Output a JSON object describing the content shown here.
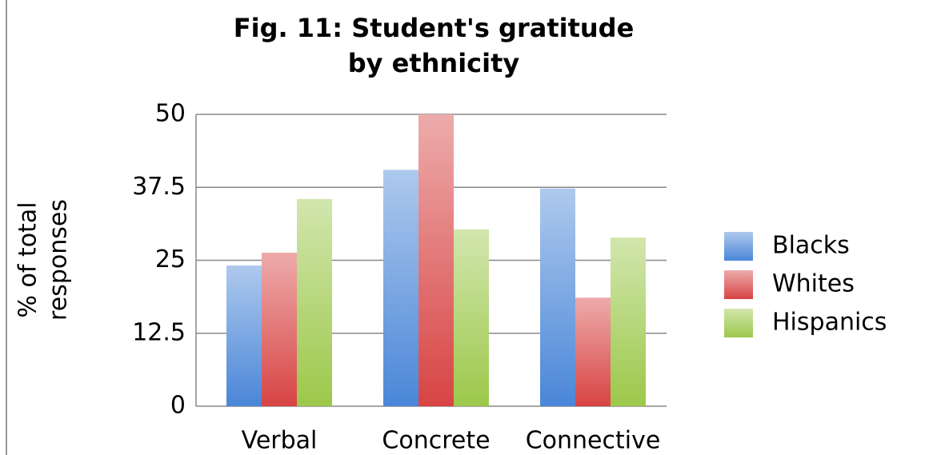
{
  "chart_data": {
    "type": "bar",
    "title": [
      "Fig. 11: Student's gratitude",
      "by ethnicity"
    ],
    "y_label": [
      "% of total",
      "responses"
    ],
    "categories": [
      "Verbal",
      "Concrete",
      "Connective"
    ],
    "series": [
      {
        "name": "Blacks",
        "color": "#4a86d8",
        "values": [
          24.1,
          40.5,
          37.3
        ]
      },
      {
        "name": "Whites",
        "color": "#d84444",
        "values": [
          26.3,
          50,
          18.6
        ]
      },
      {
        "name": "Hispanics",
        "color": "#9cc84a",
        "values": [
          35.5,
          30.3,
          28.9
        ]
      }
    ],
    "ylim": [
      0,
      50
    ],
    "yticks": [
      0,
      12.5,
      25,
      37.5,
      50
    ],
    "grid": true,
    "legend": "right"
  }
}
